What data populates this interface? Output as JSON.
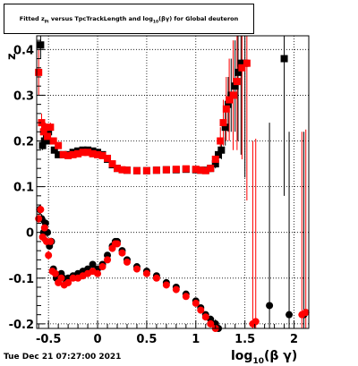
{
  "title": {
    "pre": "Fitted  z",
    "sub1": "Pi",
    "mid": "  versus TpcTrackLength and log",
    "sub2": "10",
    "post": "(βγ) for Global deuteron"
  },
  "footer": "Tue Dec 21 07:27:00 2021",
  "colors": {
    "black_series": "#000000",
    "red_series": "#ff0000",
    "grid": "#000000"
  },
  "chart_data": {
    "type": "scatter",
    "x_axis": {
      "label": "log",
      "label_sub": "10",
      "label_post": "(β γ)",
      "range": [
        -0.62,
        2.15
      ],
      "ticks": [
        -0.5,
        0,
        0.5,
        1,
        1.5,
        2
      ],
      "tick_labels": [
        "-0.5",
        "0",
        "0.5",
        "1",
        "1.5",
        "2"
      ]
    },
    "y_axis": {
      "label": "z",
      "range": [
        -0.21,
        0.43
      ],
      "ticks": [
        -0.2,
        -0.1,
        0,
        0.1,
        0.2,
        0.3,
        0.4
      ],
      "tick_labels": [
        "-0.2",
        "-0.1",
        "0",
        "0.1",
        "0.2",
        "0.3",
        "0.4"
      ]
    },
    "grid": true,
    "series": [
      {
        "marker": "square",
        "color": "#000000",
        "x": [
          -0.58,
          -0.56,
          -0.54,
          -0.52,
          -0.5,
          -0.47,
          -0.44,
          -0.4,
          -0.35,
          -0.3,
          -0.25,
          -0.2,
          -0.15,
          -0.1,
          -0.05,
          0.0,
          0.05,
          0.1,
          0.15,
          0.2,
          0.3,
          0.4,
          0.5,
          0.6,
          0.7,
          0.8,
          0.9,
          1.0,
          1.05,
          1.1,
          1.15,
          1.2,
          1.23,
          1.26,
          1.3,
          1.33,
          1.36,
          1.4,
          1.43,
          1.46,
          1.5,
          1.9
        ],
        "y": [
          0.41,
          0.19,
          0.2,
          0.21,
          0.22,
          0.2,
          0.18,
          0.17,
          0.17,
          0.17,
          0.175,
          0.178,
          0.18,
          0.18,
          0.178,
          0.175,
          0.17,
          0.16,
          0.148,
          0.14,
          0.136,
          0.135,
          0.135,
          0.136,
          0.137,
          0.137,
          0.138,
          0.137,
          0.136,
          0.136,
          0.14,
          0.15,
          0.17,
          0.18,
          0.23,
          0.28,
          0.3,
          0.32,
          0.35,
          0.37,
          0.37,
          0.38
        ],
        "err": [
          0.03,
          0.01,
          0.01,
          0.01,
          0.01,
          0.005,
          0.005,
          0.004,
          0.004,
          0.004,
          0.004,
          0.004,
          0.004,
          0.004,
          0.004,
          0.004,
          0.004,
          0.004,
          0.004,
          0.004,
          0.003,
          0.003,
          0.003,
          0.003,
          0.003,
          0.003,
          0.003,
          0.004,
          0.005,
          0.006,
          0.008,
          0.01,
          0.015,
          0.02,
          0.04,
          0.06,
          0.08,
          0.1,
          0.15,
          0.2,
          0.25,
          0.3
        ]
      },
      {
        "marker": "square",
        "color": "#ff0000",
        "x": [
          -0.6,
          -0.57,
          -0.55,
          -0.53,
          -0.51,
          -0.48,
          -0.45,
          -0.4,
          -0.35,
          -0.3,
          -0.25,
          -0.2,
          -0.15,
          -0.1,
          -0.05,
          0.0,
          0.05,
          0.1,
          0.15,
          0.2,
          0.25,
          0.3,
          0.4,
          0.5,
          0.6,
          0.7,
          0.8,
          0.9,
          1.0,
          1.05,
          1.1,
          1.15,
          1.2,
          1.25,
          1.28,
          1.31,
          1.34,
          1.38,
          1.42,
          1.47,
          1.52
        ],
        "y": [
          0.35,
          0.24,
          0.22,
          0.23,
          0.21,
          0.23,
          0.2,
          0.19,
          0.17,
          0.168,
          0.17,
          0.172,
          0.175,
          0.175,
          0.172,
          0.17,
          0.168,
          0.162,
          0.15,
          0.14,
          0.137,
          0.136,
          0.135,
          0.135,
          0.136,
          0.137,
          0.138,
          0.139,
          0.138,
          0.136,
          0.135,
          0.14,
          0.16,
          0.2,
          0.24,
          0.27,
          0.29,
          0.3,
          0.33,
          0.36,
          0.37
        ],
        "err": [
          0.05,
          0.02,
          0.01,
          0.01,
          0.01,
          0.01,
          0.006,
          0.005,
          0.004,
          0.004,
          0.004,
          0.004,
          0.004,
          0.004,
          0.004,
          0.004,
          0.004,
          0.004,
          0.004,
          0.004,
          0.004,
          0.003,
          0.003,
          0.003,
          0.003,
          0.003,
          0.003,
          0.003,
          0.004,
          0.005,
          0.006,
          0.008,
          0.012,
          0.03,
          0.05,
          0.07,
          0.09,
          0.12,
          0.15,
          0.2,
          0.3
        ]
      },
      {
        "marker": "circle",
        "color": "#000000",
        "x": [
          -0.59,
          -0.57,
          -0.55,
          -0.53,
          -0.51,
          -0.49,
          -0.47,
          -0.45,
          -0.42,
          -0.4,
          -0.37,
          -0.35,
          -0.3,
          -0.25,
          -0.2,
          -0.15,
          -0.1,
          -0.05,
          0.0,
          0.05,
          0.1,
          0.15,
          0.18,
          0.2,
          0.25,
          0.3,
          0.4,
          0.5,
          0.6,
          0.7,
          0.8,
          0.9,
          1.0,
          1.05,
          1.1,
          1.15,
          1.2,
          1.23,
          1.75,
          1.95,
          2.1
        ],
        "y": [
          0.05,
          0.03,
          0.0,
          0.02,
          0.0,
          -0.03,
          -0.02,
          -0.08,
          -0.1,
          -0.1,
          -0.09,
          -0.1,
          -0.1,
          -0.095,
          -0.09,
          -0.085,
          -0.08,
          -0.07,
          -0.08,
          -0.07,
          -0.05,
          -0.03,
          -0.02,
          -0.02,
          -0.04,
          -0.06,
          -0.075,
          -0.085,
          -0.095,
          -0.11,
          -0.12,
          -0.135,
          -0.15,
          -0.165,
          -0.18,
          -0.19,
          -0.2,
          -0.21,
          -0.16,
          -0.18,
          -0.18
        ],
        "err": [
          0.01,
          0.01,
          0.01,
          0.01,
          0.01,
          0.008,
          0.008,
          0.006,
          0.005,
          0.005,
          0.004,
          0.004,
          0.004,
          0.004,
          0.004,
          0.004,
          0.004,
          0.004,
          0.004,
          0.004,
          0.004,
          0.004,
          0.004,
          0.004,
          0.003,
          0.003,
          0.003,
          0.003,
          0.003,
          0.003,
          0.003,
          0.003,
          0.004,
          0.005,
          0.006,
          0.008,
          0.01,
          0.012,
          0.4,
          0.4,
          0.4
        ]
      },
      {
        "marker": "circle",
        "color": "#ff0000",
        "x": [
          -0.6,
          -0.58,
          -0.56,
          -0.54,
          -0.52,
          -0.5,
          -0.48,
          -0.46,
          -0.43,
          -0.4,
          -0.37,
          -0.34,
          -0.3,
          -0.25,
          -0.2,
          -0.15,
          -0.1,
          -0.05,
          0.0,
          0.05,
          0.1,
          0.15,
          0.18,
          0.2,
          0.25,
          0.3,
          0.4,
          0.5,
          0.6,
          0.7,
          0.8,
          0.9,
          1.0,
          1.05,
          1.1,
          1.15,
          1.2,
          1.58,
          1.61,
          2.08,
          2.12
        ],
        "y": [
          0.03,
          0.05,
          -0.01,
          0.01,
          -0.02,
          -0.05,
          -0.02,
          -0.085,
          -0.09,
          -0.11,
          -0.1,
          -0.115,
          -0.11,
          -0.1,
          -0.1,
          -0.095,
          -0.09,
          -0.085,
          -0.09,
          -0.075,
          -0.06,
          -0.035,
          -0.025,
          -0.025,
          -0.045,
          -0.065,
          -0.08,
          -0.09,
          -0.1,
          -0.115,
          -0.125,
          -0.14,
          -0.155,
          -0.17,
          -0.185,
          -0.2,
          -0.21,
          -0.2,
          -0.195,
          -0.18,
          -0.175
        ],
        "err": [
          0.01,
          0.01,
          0.01,
          0.01,
          0.01,
          0.01,
          0.008,
          0.006,
          0.005,
          0.005,
          0.005,
          0.004,
          0.004,
          0.004,
          0.004,
          0.004,
          0.004,
          0.004,
          0.004,
          0.004,
          0.004,
          0.004,
          0.004,
          0.004,
          0.003,
          0.003,
          0.003,
          0.003,
          0.003,
          0.003,
          0.003,
          0.003,
          0.004,
          0.005,
          0.006,
          0.008,
          0.01,
          0.4,
          0.4,
          0.4,
          0.4
        ]
      }
    ]
  }
}
